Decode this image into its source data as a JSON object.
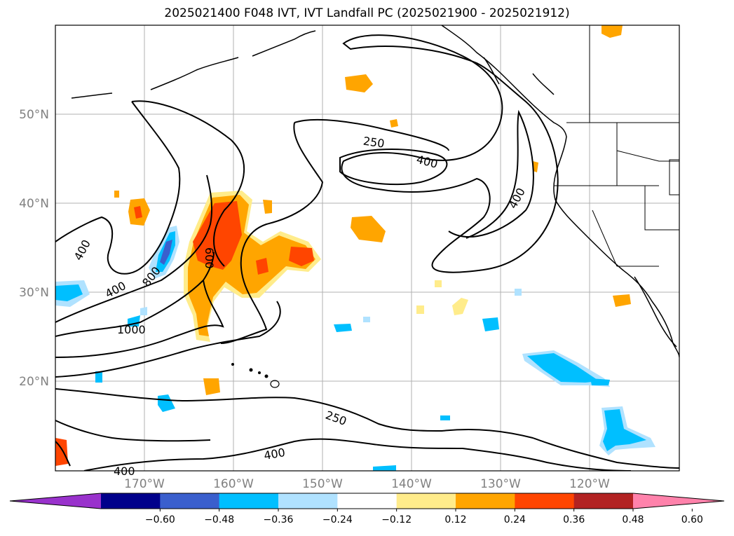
{
  "title": "2025021400 F048 IVT, IVT Landfall PC (2025021900 - 2025021912)",
  "lat_labels": [
    "50°N",
    "40°N",
    "30°N",
    "20°N"
  ],
  "lon_labels": [
    "170°W",
    "160°W",
    "150°W",
    "140°W",
    "130°W",
    "120°W"
  ],
  "contour_labels": [
    "250",
    "400",
    "400",
    "400",
    "400",
    "800",
    "600",
    "1000",
    "250",
    "400",
    "400"
  ],
  "colorbar": {
    "tick_labels": [
      "−0.60",
      "−0.48",
      "−0.36",
      "−0.24",
      "−0.12",
      "0.12",
      "0.24",
      "0.36",
      "0.48",
      "0.60"
    ],
    "colors": [
      "#9932cc",
      "#00008b",
      "#3a5fcd",
      "#00bfff",
      "#b0e2ff",
      "#ffffff",
      "#ffec8b",
      "#ffa500",
      "#ff4500",
      "#b22222",
      "#ff82ab"
    ]
  },
  "icons": {
    "coastline": "coastline-lines",
    "state_borders": "state-border-lines"
  }
}
